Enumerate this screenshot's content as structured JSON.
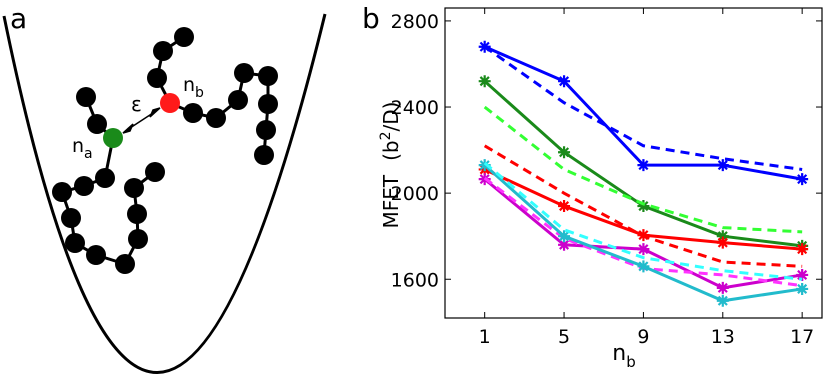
{
  "diagram": {
    "panel_label": "a",
    "epsilon_label": "ε",
    "bead_labels": [
      {
        "base": "n",
        "sub": "a"
      },
      {
        "base": "n",
        "sub": "b"
      }
    ]
  },
  "chart_data": {
    "type": "line",
    "panel_label": "b",
    "xlabel": {
      "base": "n",
      "sub": "b"
    },
    "ylabel": {
      "main": "MFET",
      "unit_pre": "(b",
      "unit_sup": "2",
      "unit_post": "/D)"
    },
    "x": [
      1,
      5,
      9,
      13,
      17
    ],
    "xlim": [
      -1,
      18
    ],
    "xticks": [
      1,
      5,
      9,
      13,
      17
    ],
    "ylim": [
      1420,
      2860
    ],
    "yticks": [
      1600,
      2000,
      2400,
      2800
    ],
    "series": [
      {
        "color": "#0000ff",
        "marker": "star",
        "dashed": false,
        "values": [
          2680,
          2520,
          2130,
          2130,
          2065
        ]
      },
      {
        "color": "#0000ff",
        "marker": "none",
        "dashed": true,
        "values": [
          2680,
          2420,
          2220,
          2160,
          2110
        ]
      },
      {
        "color": "#1a8a1a",
        "marker": "star",
        "dashed": false,
        "values": [
          2520,
          2190,
          1940,
          1800,
          1755
        ]
      },
      {
        "color": "#33ff33",
        "marker": "none",
        "dashed": true,
        "values": [
          2400,
          2110,
          1950,
          1840,
          1820
        ]
      },
      {
        "color": "#ff0000",
        "marker": "star",
        "dashed": false,
        "values": [
          2110,
          1940,
          1805,
          1770,
          1740
        ]
      },
      {
        "color": "#ff0000",
        "marker": "none",
        "dashed": true,
        "values": [
          2220,
          2000,
          1800,
          1680,
          1660
        ]
      },
      {
        "color": "#cc00cc",
        "marker": "star",
        "dashed": false,
        "values": [
          2065,
          1760,
          1740,
          1560,
          1620
        ]
      },
      {
        "color": "#ff33ff",
        "marker": "none",
        "dashed": true,
        "values": [
          2070,
          1790,
          1650,
          1620,
          1570
        ]
      },
      {
        "color": "#22bbcc",
        "marker": "star",
        "dashed": false,
        "values": [
          2130,
          1800,
          1660,
          1500,
          1555
        ]
      },
      {
        "color": "#33ffff",
        "marker": "none",
        "dashed": true,
        "values": [
          2140,
          1830,
          1700,
          1640,
          1600
        ]
      }
    ]
  }
}
